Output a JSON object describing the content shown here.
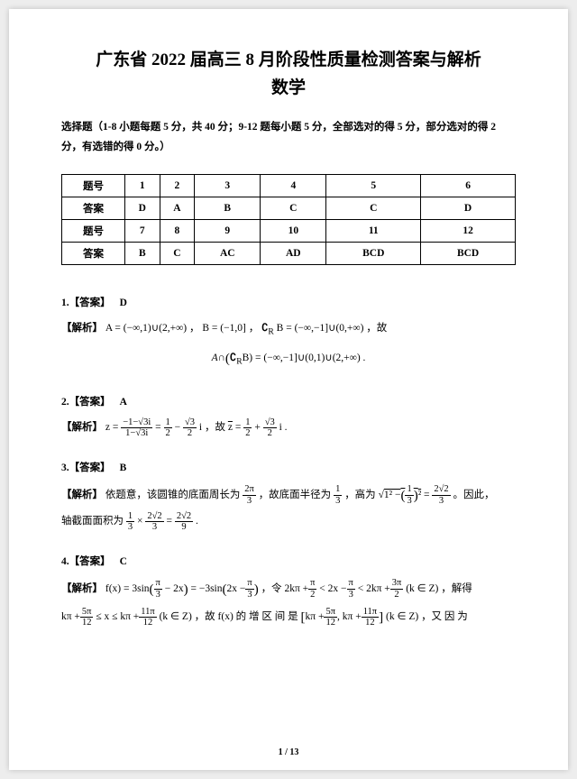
{
  "header": {
    "title": "广东省 2022 届高三 8 月阶段性质量检测答案与解析",
    "subject": "数学"
  },
  "instructions": "选择题（1-8 小题每题 5 分，共 40 分；9-12 题每小题 5 分，全部选对的得 5 分，部分选对的得 2 分，有选错的得 0 分。）",
  "table": {
    "row_label": "题号",
    "ans_label": "答案",
    "r1": [
      "1",
      "2",
      "3",
      "4",
      "5",
      "6"
    ],
    "a1": [
      "D",
      "A",
      "B",
      "C",
      "C",
      "D"
    ],
    "r2": [
      "7",
      "8",
      "9",
      "10",
      "11",
      "12"
    ],
    "a2": [
      "B",
      "C",
      "AC",
      "AD",
      "BCD",
      "BCD"
    ]
  },
  "labels": {
    "answer": "【答案】",
    "explain": "【解析】"
  },
  "q1": {
    "num": "1.",
    "ans": "D",
    "line1_a": "A = (−∞,1)∪(2,+∞) ，",
    "line1_b": "B = (−1,0] ，",
    "line1_c": "B = (−∞,−1]∪(0,+∞) ，故",
    "line2": "B) = (−∞,−1]∪(0,1)∪(2,+∞) ."
  },
  "q2": {
    "num": "2.",
    "ans": "A",
    "zlabel": "z =",
    "f1n": "−1−√3i",
    "f1d": "1−√3i",
    "eq": "=",
    "f2a": "1",
    "f2b": "2",
    "minus": "−",
    "f3a": "√3",
    "f3b": "2",
    "itxt": "i ，故",
    "zbar": "z",
    "eq2": "=",
    "plus": "+",
    "tail": "i ."
  },
  "q3": {
    "num": "3.",
    "ans": "B",
    "pre": "依题意，该圆锥的底面周长为",
    "p2": "，故底面半径为",
    "p3": "，高为",
    "root_inner": "1² −",
    "eq": "=",
    "p4": "。因此，",
    "p5": "轴截面面积为",
    "times": "×",
    "result": "=",
    "tail": "."
  },
  "q4": {
    "num": "4.",
    "ans": "C",
    "f": "f(x) = 3sin",
    "arg1a": "π",
    "arg1b": "3",
    "arg1c": "− 2x",
    "eqneg": "= −3sin",
    "arg2a": "2x −",
    "let": "，令",
    "ineq1a": "2kπ +",
    "ineq1b": "< 2x −",
    "ineq1c": "< 2kπ +",
    "kz": "(k ∈ Z)",
    "solve": "，解得",
    "line2a": "kπ +",
    "le": "≤ x ≤ kπ +",
    "so": "，故",
    "fx": "f(x)",
    "inc": "的 增 区 间 是",
    "comma": "，又 因 为"
  },
  "fracs": {
    "twopi3n": "2π",
    "twopi3d": "3",
    "one3n": "1",
    "one3d": "3",
    "one3sq_n": "1",
    "one3sq_d": "3",
    "tworoot2_3n": "2√2",
    "tworoot2_3d": "3",
    "tworoot2_9n": "2√2",
    "tworoot2_9d": "9",
    "pi3n": "π",
    "pi3d": "3",
    "pi2n": "π",
    "pi2d": "2",
    "threepi2n": "3π",
    "threepi2d": "2",
    "fivepi12n": "5π",
    "fivepi12d": "12",
    "elevenpi12n": "11π",
    "elevenpi12d": "12"
  },
  "pagenum": "1 / 13"
}
